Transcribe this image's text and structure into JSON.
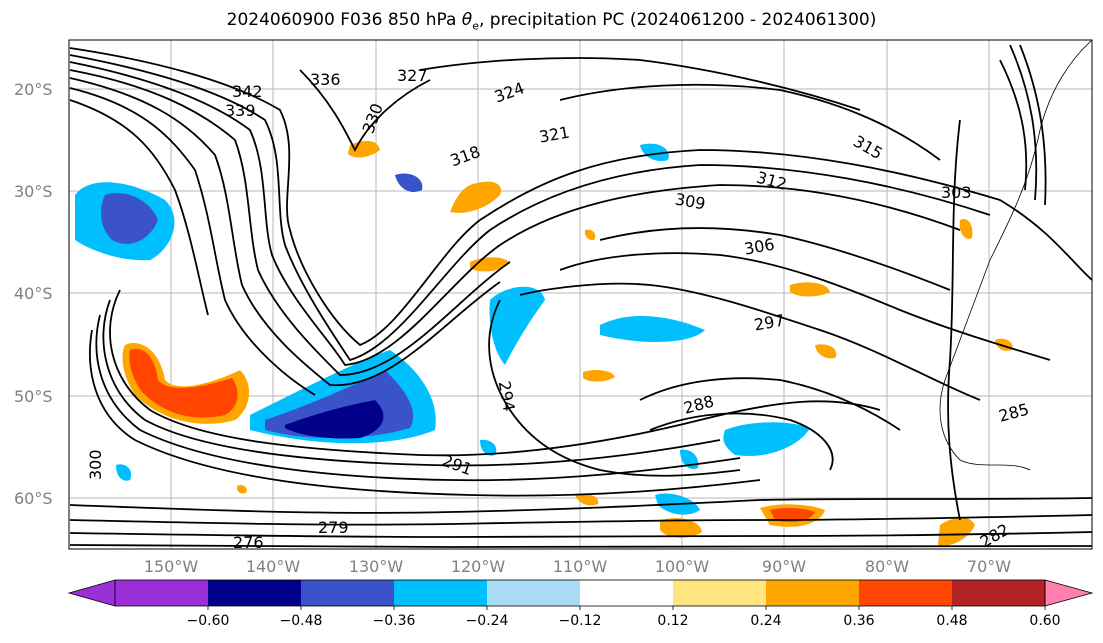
{
  "figure": {
    "title_prefix": "2024060900 F036 850 hPa ",
    "title_symbol": "θ",
    "title_subscript": "e",
    "title_suffix": ", precipitation PC (2024061200 - 2024061300)"
  },
  "axes": {
    "lat_labels": [
      "20°S",
      "30°S",
      "40°S",
      "50°S",
      "60°S"
    ],
    "lon_labels": [
      "150°W",
      "140°W",
      "130°W",
      "120°W",
      "110°W",
      "100°W",
      "90°W",
      "80°W",
      "70°W"
    ]
  },
  "colorbar": {
    "tick_labels": [
      "−0.60",
      "−0.48",
      "−0.36",
      "−0.24",
      "−0.12",
      "0.12",
      "0.24",
      "0.36",
      "0.48",
      "0.60"
    ],
    "under_color": "#9b30d9",
    "colors": [
      "#9b30d9",
      "#00008b",
      "#3a53c9",
      "#00bfff",
      "#a8dcf7",
      "#ffffff",
      "#ffe57f",
      "#ffa500",
      "#ff4500",
      "#b22222"
    ],
    "over_color": "#ff7fb0"
  },
  "contour_labels": [
    "336",
    "327",
    "342",
    "339",
    "330",
    "324",
    "321",
    "318",
    "315",
    "312",
    "309",
    "306",
    "303",
    "300",
    "297",
    "294",
    "291",
    "288",
    "285",
    "282",
    "279",
    "276"
  ],
  "chart_data": {
    "type": "heatmap",
    "field": "850 hPa theta-e contours with precipitation PC shading",
    "lat_range": [
      -65,
      -15
    ],
    "lon_range": [
      -160,
      -58
    ],
    "contour_values": [
      276,
      279,
      282,
      285,
      288,
      291,
      294,
      297,
      300,
      303,
      306,
      309,
      312,
      315,
      318,
      321,
      324,
      327,
      330,
      336,
      339,
      342
    ],
    "shading_levels": [
      -0.6,
      -0.48,
      -0.36,
      -0.24,
      -0.12,
      0.12,
      0.24,
      0.36,
      0.48,
      0.6
    ]
  }
}
